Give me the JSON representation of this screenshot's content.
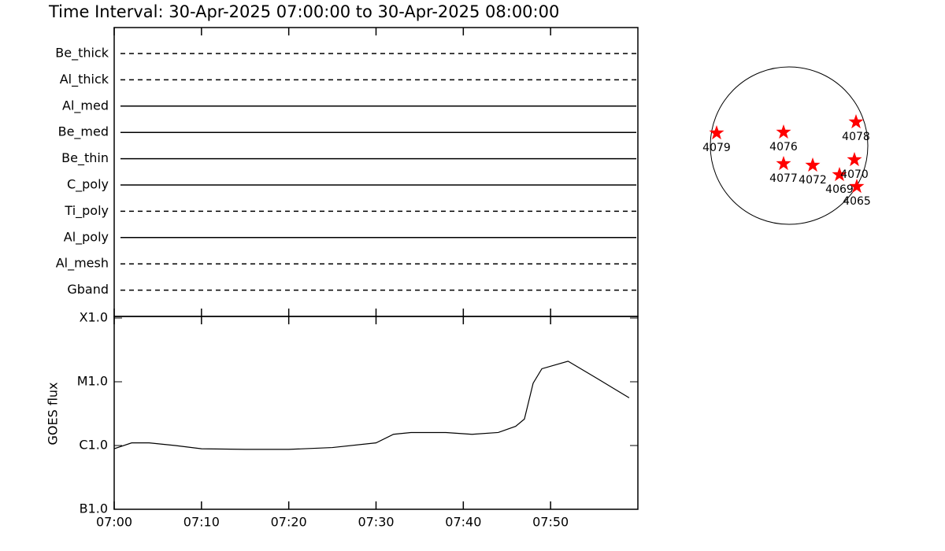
{
  "title": "Time Interval: 30-Apr-2025 07:00:00 to 30-Apr-2025 08:00:00",
  "chart_data": [
    {
      "type": "filter-lines",
      "categories": [
        "Be_thick",
        "Al_thick",
        "Al_med",
        "Be_med",
        "Be_thin",
        "C_poly",
        "Ti_poly",
        "Al_poly",
        "Al_mesh",
        "Gband"
      ],
      "line_styles": [
        "dashed",
        "dashed",
        "solid",
        "solid",
        "solid",
        "solid",
        "dashed",
        "solid",
        "dashed",
        "dashed"
      ],
      "color": "#000000"
    },
    {
      "type": "line",
      "ylabel": "GOES flux",
      "log_scale": true,
      "color": "#000000",
      "x": [
        "07:00",
        "07:02",
        "07:04",
        "07:07",
        "07:10",
        "07:15",
        "07:20",
        "07:25",
        "07:30",
        "07:32",
        "07:34",
        "07:38",
        "07:41",
        "07:44",
        "07:46",
        "07:47",
        "07:48",
        "07:49",
        "07:52",
        "07:55",
        "07:57",
        "07:59"
      ],
      "values": [
        8.9e-07,
        1.1e-06,
        1.1e-06,
        1e-06,
        8.9e-07,
        8.7e-07,
        8.7e-07,
        9.3e-07,
        1.1e-06,
        1.5e-06,
        1.6e-06,
        1.6e-06,
        1.5e-06,
        1.6e-06,
        2e-06,
        2.6e-06,
        9.5e-06,
        1.6e-05,
        2.1e-05,
        1.2e-05,
        8.2e-06,
        5.6e-06
      ],
      "xlim": [
        "07:00",
        "08:00"
      ],
      "xticks": [
        "07:00",
        "07:10",
        "07:20",
        "07:30",
        "07:40",
        "07:50"
      ],
      "ylim": [
        1e-07,
        0.0001
      ],
      "yticks": [
        {
          "value": 1e-07,
          "label": "B1.0"
        },
        {
          "value": 1e-06,
          "label": "C1.0"
        },
        {
          "value": 1e-05,
          "label": "M1.0"
        },
        {
          "value": 0.0001,
          "label": "X1.0"
        }
      ]
    },
    {
      "type": "scatter",
      "color": "#ff0000",
      "labels": [
        "4079",
        "4076",
        "4078",
        "4077",
        "4072",
        "4069",
        "4070",
        "4065"
      ],
      "x": [
        -0.92,
        -0.07,
        0.85,
        -0.07,
        0.3,
        0.64,
        0.83,
        0.86
      ],
      "values": [
        0.16,
        0.17,
        0.3,
        -0.23,
        -0.25,
        -0.37,
        -0.18,
        -0.52
      ],
      "xlim": [
        -1,
        1
      ],
      "ylim": [
        -1,
        1
      ]
    }
  ]
}
